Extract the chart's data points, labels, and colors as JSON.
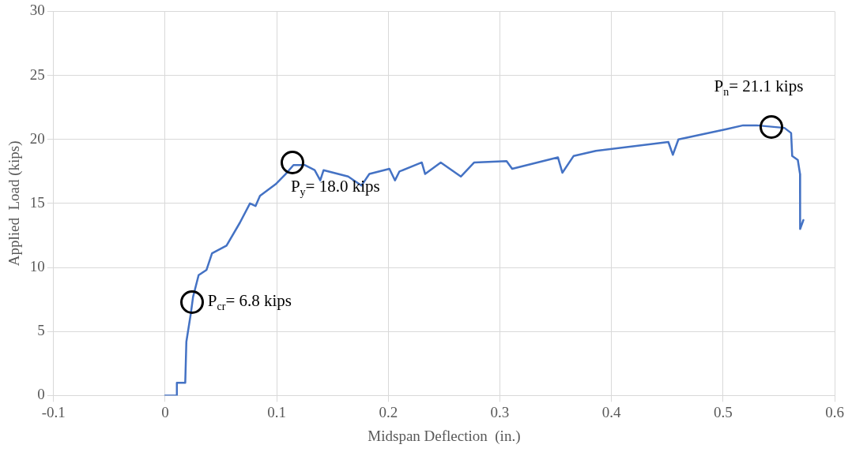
{
  "chart_data": {
    "type": "line",
    "xlabel": "Midspan Deflection  (in.)",
    "ylabel": "Applied  Load (kips)",
    "series": [
      {
        "color": "#4472c4",
        "x": [
          0,
          0.0104,
          0.0105,
          0.018,
          0.019,
          0.023,
          0.025,
          0.03,
          0.037,
          0.042,
          0.055,
          0.067,
          0.076,
          0.081,
          0.085,
          0.099,
          0.108,
          0.115,
          0.125,
          0.134,
          0.139,
          0.142,
          0.164,
          0.176,
          0.183,
          0.201,
          0.206,
          0.21,
          0.23,
          0.233,
          0.247,
          0.265,
          0.277,
          0.306,
          0.311,
          0.352,
          0.356,
          0.366,
          0.386,
          0.451,
          0.455,
          0.46,
          0.503,
          0.518,
          0.53,
          0.555,
          0.561,
          0.562,
          0.567,
          0.569,
          0.5691,
          0.572
        ],
        "values": [
          0,
          0,
          1.0,
          1.0,
          4.2,
          6.4,
          7.7,
          9.4,
          9.8,
          11.1,
          11.7,
          13.5,
          15.0,
          14.8,
          15.6,
          16.5,
          17.3,
          18.0,
          18.0,
          17.6,
          16.8,
          17.6,
          17.1,
          16.4,
          17.3,
          17.7,
          16.8,
          17.5,
          18.2,
          17.3,
          18.2,
          17.1,
          18.2,
          18.3,
          17.7,
          18.6,
          17.4,
          18.7,
          19.1,
          19.8,
          18.8,
          20.0,
          20.8,
          21.1,
          21.1,
          20.9,
          20.5,
          18.7,
          18.4,
          17.3,
          13.0,
          13.7
        ]
      }
    ],
    "xlim": [
      -0.1,
      0.6
    ],
    "xticks": [
      -0.1,
      0,
      0.1,
      0.2,
      0.3,
      0.4,
      0.5,
      0.6
    ],
    "ylim": [
      0,
      30
    ],
    "yticks": [
      0,
      5,
      10,
      15,
      20,
      25,
      30
    ],
    "grid": true,
    "legend": false,
    "marker": "none",
    "line_style": "solid",
    "annotations": [
      {
        "text": "P$_{cr}$= 6.8 kips",
        "x": 0.024,
        "y": 7.3
      },
      {
        "text": "P$_{y}$= 18.0 kips",
        "x": 0.114,
        "y": 18.2
      },
      {
        "text": "P$_{n}$= 21.1 kips",
        "x": 0.543,
        "y": 21.0
      }
    ]
  }
}
